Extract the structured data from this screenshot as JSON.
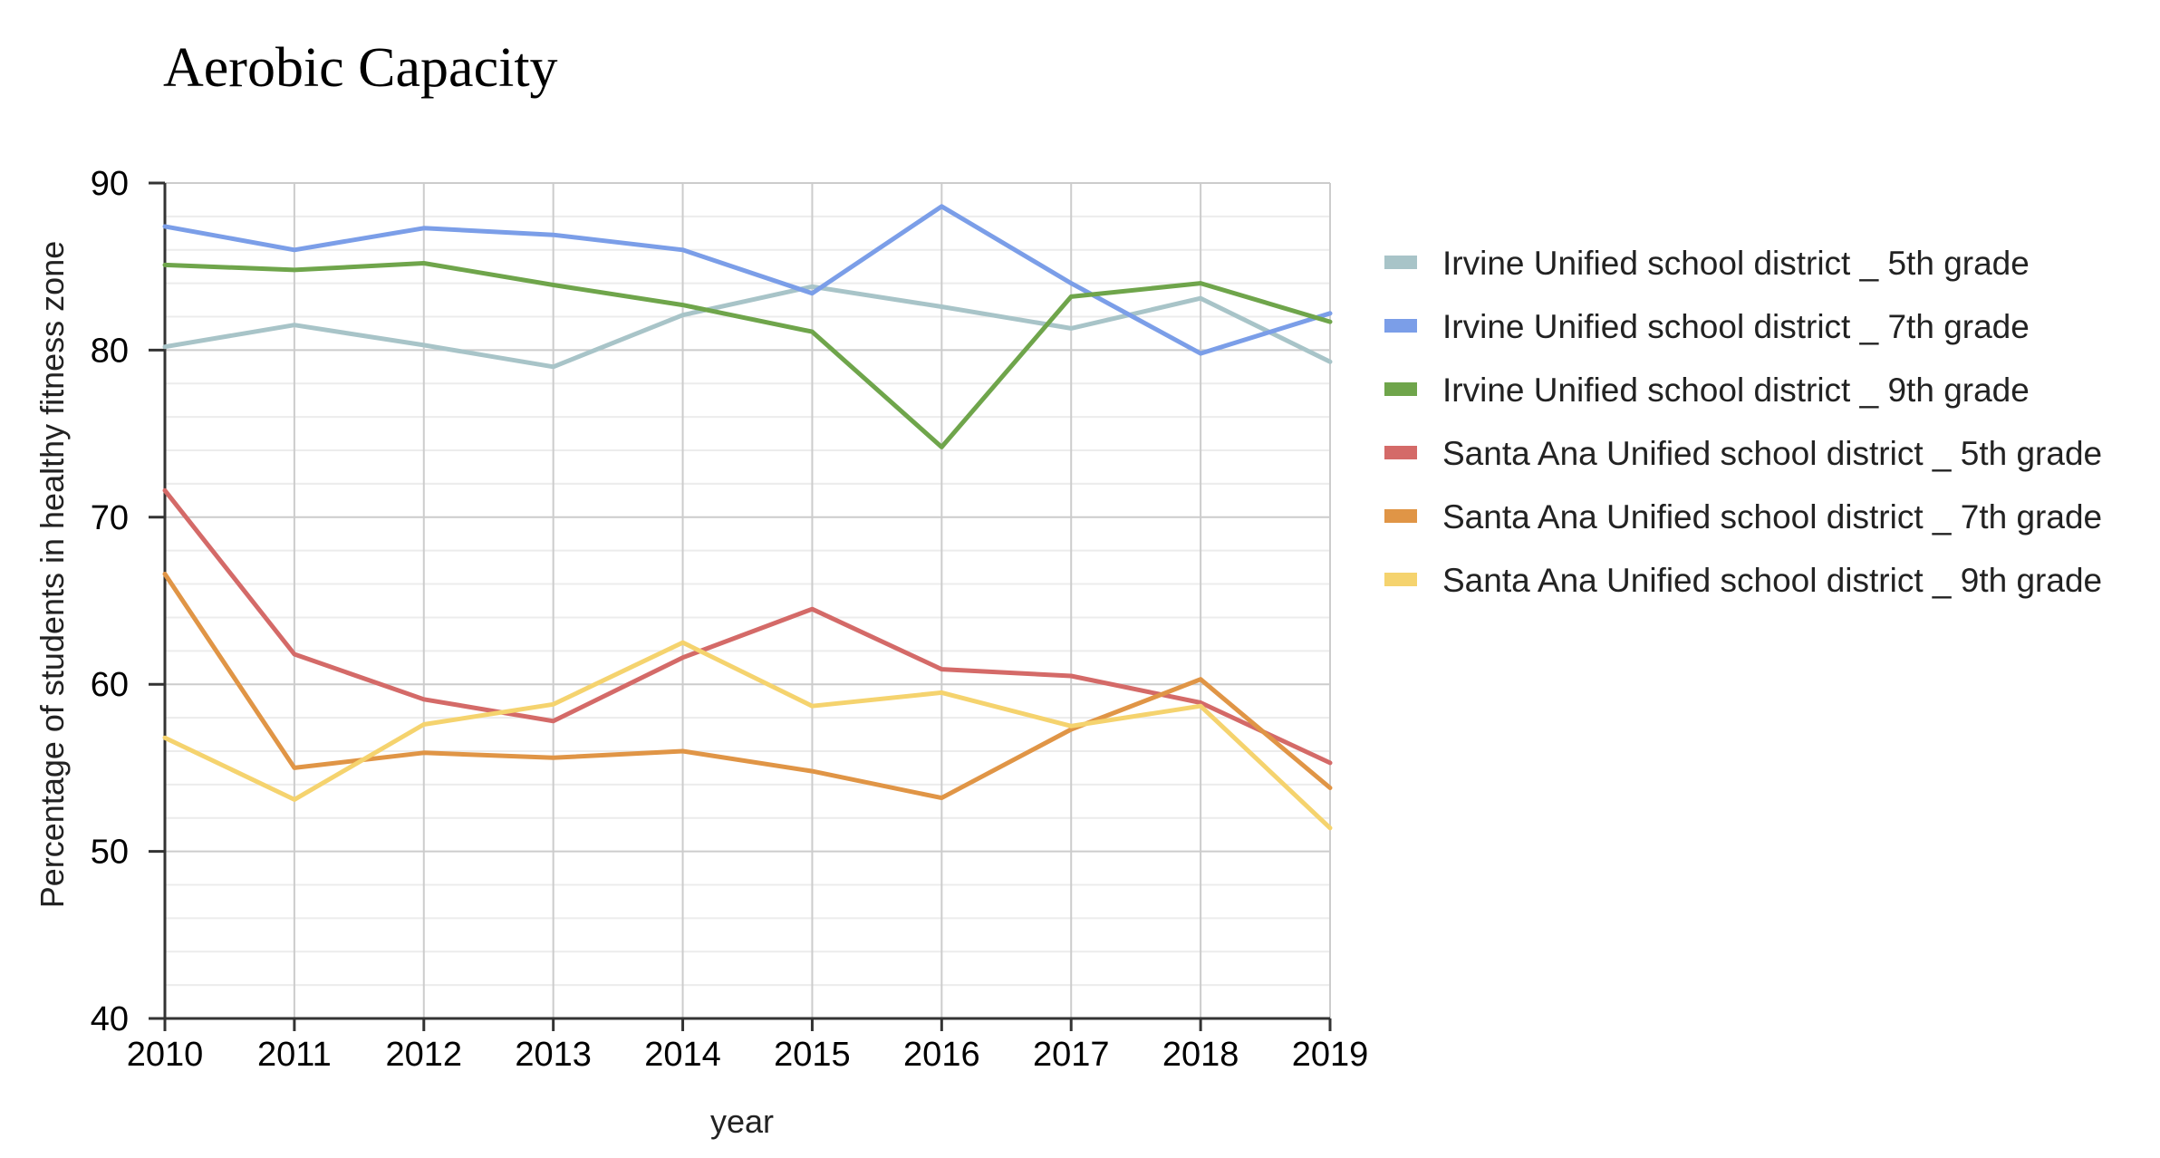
{
  "chart_data": {
    "type": "line",
    "title": "Aerobic Capacity",
    "xlabel": "year",
    "ylabel": "Percentage of students in healthy fitness zone",
    "x": [
      2010,
      2011,
      2012,
      2013,
      2014,
      2015,
      2016,
      2017,
      2018,
      2019
    ],
    "ylim": [
      40,
      90
    ],
    "yticks": [
      40,
      50,
      60,
      70,
      80,
      90
    ],
    "grid": true,
    "legend_position": "right",
    "series": [
      {
        "name": "Irvine Unified school district _ 5th grade",
        "color": "#a8c4c8",
        "values": [
          80.2,
          81.5,
          80.3,
          79.0,
          82.1,
          83.8,
          82.6,
          81.3,
          83.1,
          79.3
        ]
      },
      {
        "name": "Irvine Unified school district _ 7th grade",
        "color": "#7b9ee8",
        "values": [
          87.4,
          86.0,
          87.3,
          86.9,
          86.0,
          83.4,
          88.6,
          84.0,
          79.8,
          82.2
        ]
      },
      {
        "name": "Irvine Unified school district _ 9th grade",
        "color": "#6fa54b",
        "values": [
          85.1,
          84.8,
          85.2,
          83.9,
          82.7,
          81.1,
          74.2,
          83.2,
          84.0,
          81.7
        ]
      },
      {
        "name": "Santa Ana Unified school district _ 5th grade",
        "color": "#d46a68",
        "values": [
          71.6,
          61.8,
          59.1,
          57.8,
          61.6,
          64.5,
          60.9,
          60.5,
          58.9,
          55.3
        ]
      },
      {
        "name": "Santa Ana Unified school district _ 7th grade",
        "color": "#e09546",
        "values": [
          66.6,
          55.0,
          55.9,
          55.6,
          56.0,
          54.8,
          53.2,
          57.3,
          60.3,
          53.8
        ]
      },
      {
        "name": "Santa Ana Unified school district _ 9th grade",
        "color": "#f5d36e",
        "values": [
          56.8,
          53.1,
          57.6,
          58.8,
          62.5,
          58.7,
          59.5,
          57.5,
          58.7,
          51.4
        ]
      }
    ]
  }
}
